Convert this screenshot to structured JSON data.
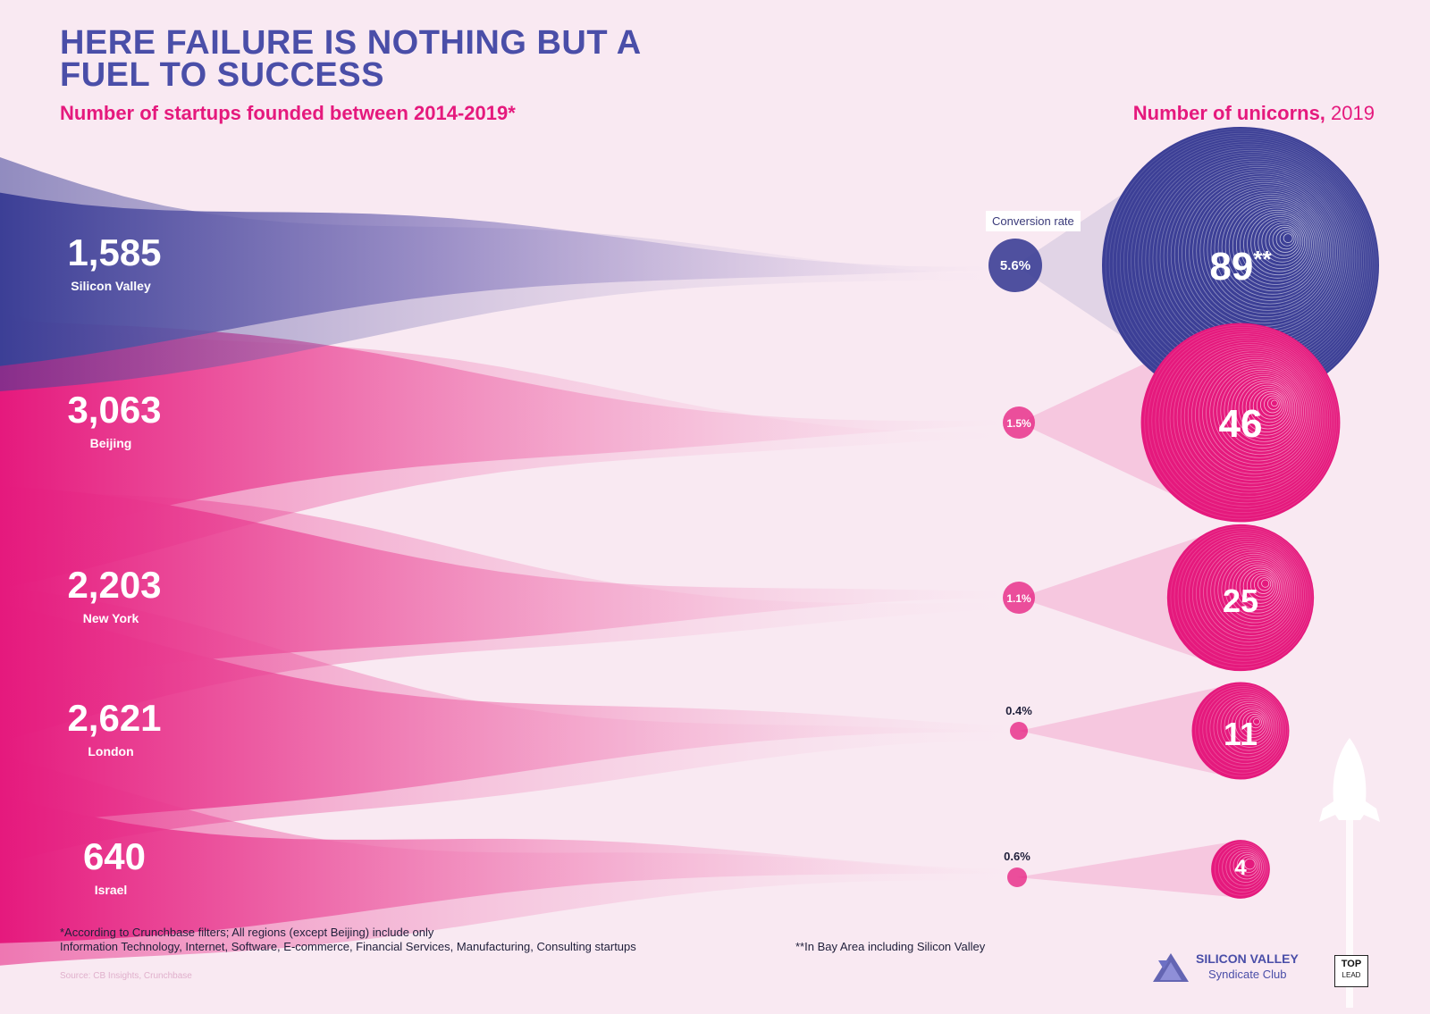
{
  "header": {
    "title_line1": "HERE FAILURE IS NOTHING BUT A",
    "title_line2": "FUEL TO SUCCESS",
    "subtitle_left": "Number of startups founded between 2014-2019*",
    "subtitle_right": "Number of unicorns,",
    "subtitle_right_year": "2019",
    "conversion_label": "Conversion rate"
  },
  "chart_data": {
    "type": "flow-bubble",
    "regions": [
      {
        "name": "Silicon Valley",
        "startups": 1585,
        "startups_label": "1,585",
        "conversion": "5.6%",
        "unicorns": 89,
        "unicorns_label": "89",
        "unicorns_suffix": "**",
        "color": "#3c3f96"
      },
      {
        "name": "Beijing",
        "startups": 3063,
        "startups_label": "3,063",
        "conversion": "1.5%",
        "unicorns": 46,
        "unicorns_label": "46",
        "unicorns_suffix": "",
        "color": "#e5197d"
      },
      {
        "name": "New York",
        "startups": 2203,
        "startups_label": "2,203",
        "conversion": "1.1%",
        "unicorns": 25,
        "unicorns_label": "25",
        "unicorns_suffix": "",
        "color": "#e5197d"
      },
      {
        "name": "London",
        "startups": 2621,
        "startups_label": "2,621",
        "conversion": "0.4%",
        "unicorns": 11,
        "unicorns_label": "11",
        "unicorns_suffix": "",
        "color": "#e5197d"
      },
      {
        "name": "Israel",
        "startups": 640,
        "startups_label": "640",
        "conversion": "0.6%",
        "unicorns": 4,
        "unicorns_label": "4",
        "unicorns_suffix": "",
        "color": "#e5197d"
      }
    ]
  },
  "footer": {
    "footnote_line1": "*According to Crunchbase filters; All regions (except Beijing) include only",
    "footnote_line2": "Information Technology, Internet, Software, E-commerce, Financial Services, Manufacturing, Consulting startups",
    "footnote_bay": "**In Bay Area including Silicon Valley",
    "source": "Source: CB Insights, Crunchbase",
    "logo_name": "SILICON VALLEY",
    "logo_sub": "Syndicate Club",
    "toplead_1": "TOP",
    "toplead_2": "LEAD"
  }
}
